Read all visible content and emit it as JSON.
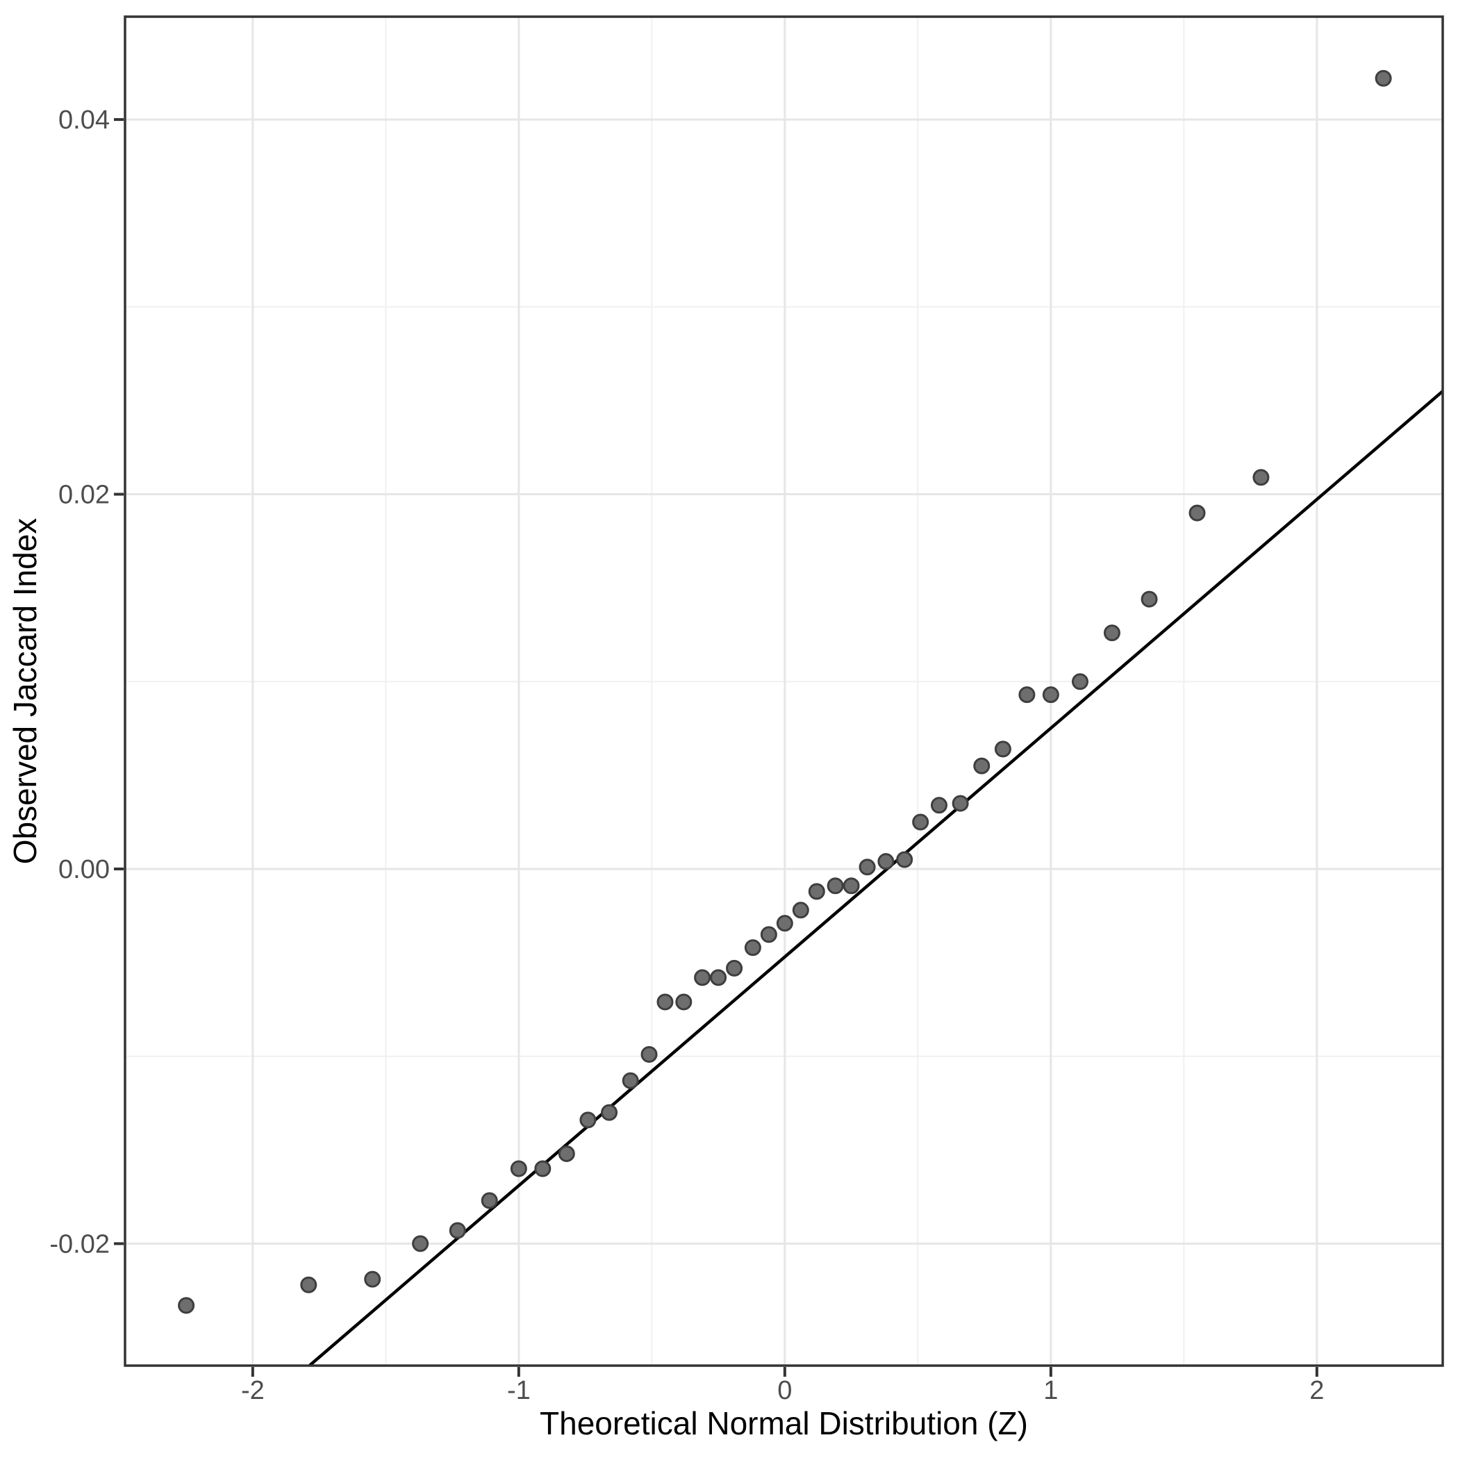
{
  "figure": {
    "background": "#ffffff"
  },
  "chart_data": {
    "type": "scatter",
    "title": "",
    "xlabel": "Theoretical Normal Distribution (Z)",
    "ylabel": "Observed Jaccard Index",
    "x_tick_values": [
      -2,
      -1,
      0,
      1,
      2
    ],
    "x_tick_labels": [
      "-2",
      "-1",
      "0",
      "1",
      "2"
    ],
    "y_tick_values": [
      0.04,
      0.02,
      0.0,
      -0.02
    ],
    "y_tick_labels": [
      "0.04",
      "0.02",
      "0.00",
      "-0.02"
    ],
    "x_minor_values": [
      -1.5,
      -0.5,
      0.5,
      1.5
    ],
    "y_minor_values": [
      0.03,
      0.01,
      -0.01
    ],
    "xlim": [
      -2.48,
      2.473
    ],
    "ylim": [
      -0.02651,
      0.04549
    ],
    "grid": true,
    "legend_position": "none",
    "points": [
      [
        -2.25,
        -0.0233
      ],
      [
        -1.79,
        -0.0222
      ],
      [
        -1.55,
        -0.0219
      ],
      [
        -1.37,
        -0.02
      ],
      [
        -1.23,
        -0.0193
      ],
      [
        -1.11,
        -0.0177
      ],
      [
        -1.0,
        -0.016
      ],
      [
        -0.91,
        -0.016
      ],
      [
        -0.82,
        -0.0152
      ],
      [
        -0.74,
        -0.0134
      ],
      [
        -0.66,
        -0.013
      ],
      [
        -0.58,
        -0.0113
      ],
      [
        -0.51,
        -0.0099
      ],
      [
        -0.45,
        -0.0071
      ],
      [
        -0.38,
        -0.0071
      ],
      [
        -0.31,
        -0.0058
      ],
      [
        -0.25,
        -0.0058
      ],
      [
        -0.19,
        -0.0053
      ],
      [
        -0.12,
        -0.0042
      ],
      [
        -0.06,
        -0.0035
      ],
      [
        0.0,
        -0.0029
      ],
      [
        0.06,
        -0.0022
      ],
      [
        0.12,
        -0.0012
      ],
      [
        0.19,
        -0.0009
      ],
      [
        0.25,
        -0.0009
      ],
      [
        0.31,
        0.0001
      ],
      [
        0.38,
        0.0004
      ],
      [
        0.45,
        0.0005
      ],
      [
        0.51,
        0.0025
      ],
      [
        0.58,
        0.0034
      ],
      [
        0.66,
        0.0035
      ],
      [
        0.74,
        0.0055
      ],
      [
        0.82,
        0.0064
      ],
      [
        0.91,
        0.0093
      ],
      [
        1.0,
        0.0093
      ],
      [
        1.11,
        0.01
      ],
      [
        1.23,
        0.0126
      ],
      [
        1.37,
        0.0144
      ],
      [
        1.55,
        0.019
      ],
      [
        1.79,
        0.0209
      ],
      [
        2.25,
        0.0422
      ]
    ],
    "reference_line": {
      "z1": -1.786,
      "v1": -0.0265,
      "z2": 2.473,
      "v2": 0.0255
    },
    "style": {
      "point_fill": "#6e6e6e",
      "point_stroke": "#3e3e3e",
      "reference_line_color": "#000000",
      "grid_major_color": "#e6e6e6",
      "grid_minor_color": "#f0f0f0",
      "panel_border_color": "#333333",
      "tick_mark_color": "#333333",
      "tick_label_color": "#4d4d4d",
      "title_color": "#000000",
      "panel_background": "#ffffff"
    }
  }
}
